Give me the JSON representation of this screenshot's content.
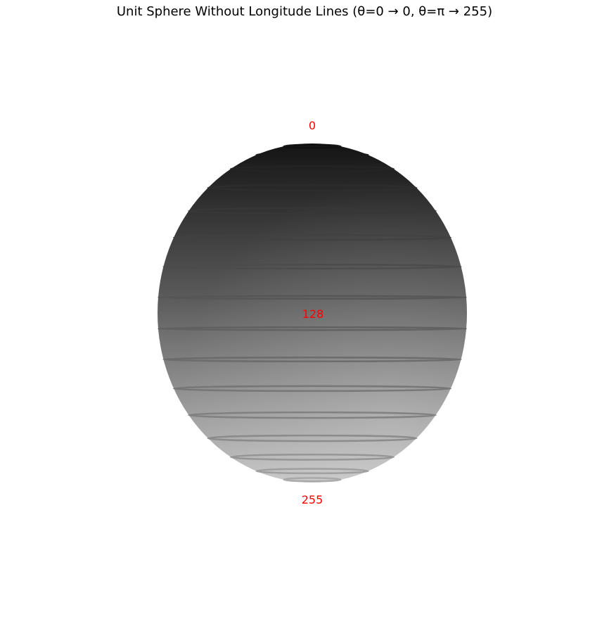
{
  "title": "Unit Sphere Without Longitude Lines (θ=0 → 0, θ=π → 255)",
  "labels": {
    "top": "0",
    "middle": "128",
    "bottom": "255"
  },
  "colors": {
    "label": "#ff0000",
    "top_shade": "#000000",
    "bottom_shade": "#c8c8c8"
  },
  "latitude_ring_count": 16
}
